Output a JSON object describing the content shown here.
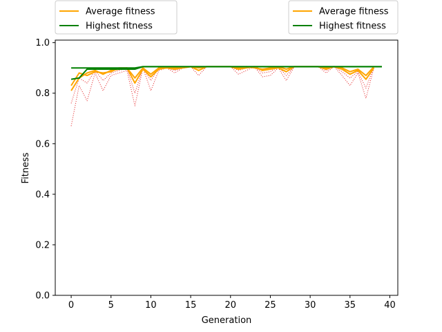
{
  "chart_data": {
    "type": "line",
    "xlabel": "Generation",
    "ylabel": "Fitness",
    "xlim": [
      -2,
      41
    ],
    "ylim": [
      0.0,
      1.01
    ],
    "x_ticks": [
      0,
      5,
      10,
      15,
      20,
      25,
      30,
      35,
      40
    ],
    "y_ticks": [
      "0.0",
      "0.2",
      "0.4",
      "0.6",
      "0.8",
      "1.0"
    ],
    "grid": false,
    "legends": [
      {
        "placement": "top-left, above plot",
        "entries": [
          {
            "label": "Average fitness",
            "color": "#ffa500",
            "series": 0
          },
          {
            "label": "Highest fitness",
            "color": "#008000",
            "series": 1
          }
        ]
      },
      {
        "placement": "top-right, above plot",
        "entries": [
          {
            "label": "Average fitness",
            "color": "#ffa500",
            "series": 2
          },
          {
            "label": "Highest fitness",
            "color": "#008000",
            "series": 3
          }
        ]
      }
    ],
    "series": [
      {
        "name": "Average fitness",
        "color": "#ffa500",
        "style": "solid",
        "x": [
          0,
          1,
          2,
          3,
          4,
          5,
          6,
          7,
          8,
          9,
          10,
          11,
          12,
          13,
          14,
          15,
          16,
          17,
          18,
          19,
          20,
          21,
          22,
          23,
          24,
          25,
          26,
          27,
          28,
          29,
          30,
          31,
          32,
          33,
          34,
          35,
          36,
          37,
          38
        ],
        "values": [
          0.81,
          0.86,
          0.88,
          0.89,
          0.875,
          0.89,
          0.895,
          0.9,
          0.84,
          0.895,
          0.865,
          0.895,
          0.9,
          0.895,
          0.9,
          0.905,
          0.89,
          0.905,
          0.905,
          0.905,
          0.905,
          0.895,
          0.9,
          0.905,
          0.89,
          0.895,
          0.9,
          0.885,
          0.905,
          0.905,
          0.905,
          0.905,
          0.895,
          0.905,
          0.895,
          0.875,
          0.89,
          0.855,
          0.9
        ]
      },
      {
        "name": "Highest fitness",
        "color": "#008000",
        "style": "solid",
        "x": [
          0,
          1,
          2,
          3,
          4,
          5,
          6,
          7,
          8,
          9,
          10,
          11,
          12,
          13,
          14,
          15,
          16,
          17,
          18,
          19,
          20,
          21,
          22,
          23,
          24,
          25,
          26,
          27,
          28,
          29,
          30,
          31,
          32,
          33,
          34,
          35,
          36,
          37,
          38,
          39
        ],
        "values": [
          0.855,
          0.86,
          0.895,
          0.895,
          0.895,
          0.895,
          0.895,
          0.895,
          0.895,
          0.905,
          0.905,
          0.905,
          0.905,
          0.905,
          0.905,
          0.905,
          0.905,
          0.905,
          0.905,
          0.905,
          0.905,
          0.905,
          0.905,
          0.905,
          0.905,
          0.905,
          0.905,
          0.905,
          0.905,
          0.905,
          0.905,
          0.905,
          0.905,
          0.905,
          0.905,
          0.905,
          0.905,
          0.905,
          0.905,
          0.905
        ]
      },
      {
        "name": "Average fitness",
        "color": "#ffa500",
        "style": "solid",
        "x": [
          0,
          1,
          2,
          3,
          4,
          5,
          6,
          7,
          8,
          9,
          10,
          11,
          12,
          13,
          14,
          15,
          16,
          17,
          18,
          19,
          20,
          21,
          22,
          23,
          24,
          25,
          26,
          27,
          28,
          29,
          30,
          31,
          32,
          33,
          34,
          35,
          36,
          37,
          38
        ],
        "values": [
          0.83,
          0.88,
          0.87,
          0.885,
          0.88,
          0.885,
          0.9,
          0.9,
          0.86,
          0.9,
          0.875,
          0.9,
          0.9,
          0.9,
          0.9,
          0.905,
          0.9,
          0.905,
          0.905,
          0.905,
          0.905,
          0.9,
          0.905,
          0.9,
          0.895,
          0.9,
          0.905,
          0.895,
          0.905,
          0.905,
          0.905,
          0.905,
          0.9,
          0.905,
          0.9,
          0.885,
          0.895,
          0.87,
          0.905
        ]
      },
      {
        "name": "Highest fitness",
        "color": "#008000",
        "style": "solid",
        "x": [
          0,
          1,
          2,
          3,
          4,
          5,
          6,
          7,
          8,
          9,
          10,
          11,
          12,
          13,
          14,
          15,
          16,
          17,
          18,
          19,
          20,
          21,
          22,
          23,
          24,
          25,
          26,
          27,
          28,
          29,
          30,
          31,
          32,
          33,
          34,
          35,
          36,
          37,
          38,
          39
        ],
        "values": [
          0.9,
          0.9,
          0.9,
          0.9,
          0.9,
          0.9,
          0.9,
          0.9,
          0.9,
          0.905,
          0.905,
          0.905,
          0.905,
          0.905,
          0.905,
          0.905,
          0.905,
          0.905,
          0.905,
          0.905,
          0.905,
          0.905,
          0.905,
          0.905,
          0.905,
          0.905,
          0.905,
          0.905,
          0.905,
          0.905,
          0.905,
          0.905,
          0.905,
          0.905,
          0.905,
          0.905,
          0.905,
          0.905,
          0.905,
          0.905
        ]
      },
      {
        "color": "#e31a1c",
        "style": "dotted",
        "x": [
          0,
          1,
          2,
          3,
          4,
          5,
          6,
          7,
          8,
          9,
          10,
          11,
          12,
          13,
          14,
          15,
          16,
          17,
          18,
          19,
          20,
          21,
          22,
          23,
          24,
          25,
          26,
          27,
          28,
          29,
          30,
          31,
          32,
          33,
          34,
          35,
          36,
          37,
          38
        ],
        "values": [
          0.67,
          0.83,
          0.77,
          0.88,
          0.81,
          0.87,
          0.88,
          0.89,
          0.75,
          0.9,
          0.81,
          0.89,
          0.9,
          0.88,
          0.9,
          0.905,
          0.87,
          0.905,
          0.905,
          0.905,
          0.905,
          0.875,
          0.89,
          0.905,
          0.865,
          0.87,
          0.9,
          0.85,
          0.905,
          0.905,
          0.905,
          0.905,
          0.88,
          0.905,
          0.87,
          0.83,
          0.88,
          0.78,
          0.9
        ]
      },
      {
        "color": "#e31a1c",
        "style": "dotted",
        "x": [
          0,
          1,
          2,
          3,
          4,
          5,
          6,
          7,
          8,
          9,
          10,
          11,
          12,
          13,
          14,
          15,
          16,
          17,
          18,
          19,
          20,
          21,
          22,
          23,
          24,
          25,
          26,
          27,
          28,
          29,
          30,
          31,
          32,
          33,
          34,
          35,
          36,
          37,
          38
        ],
        "values": [
          0.76,
          0.86,
          0.84,
          0.89,
          0.85,
          0.88,
          0.89,
          0.9,
          0.8,
          0.9,
          0.85,
          0.9,
          0.9,
          0.89,
          0.9,
          0.905,
          0.89,
          0.905,
          0.905,
          0.905,
          0.905,
          0.89,
          0.9,
          0.905,
          0.88,
          0.885,
          0.905,
          0.87,
          0.905,
          0.905,
          0.905,
          0.905,
          0.89,
          0.905,
          0.885,
          0.86,
          0.885,
          0.82,
          0.905
        ]
      }
    ]
  }
}
